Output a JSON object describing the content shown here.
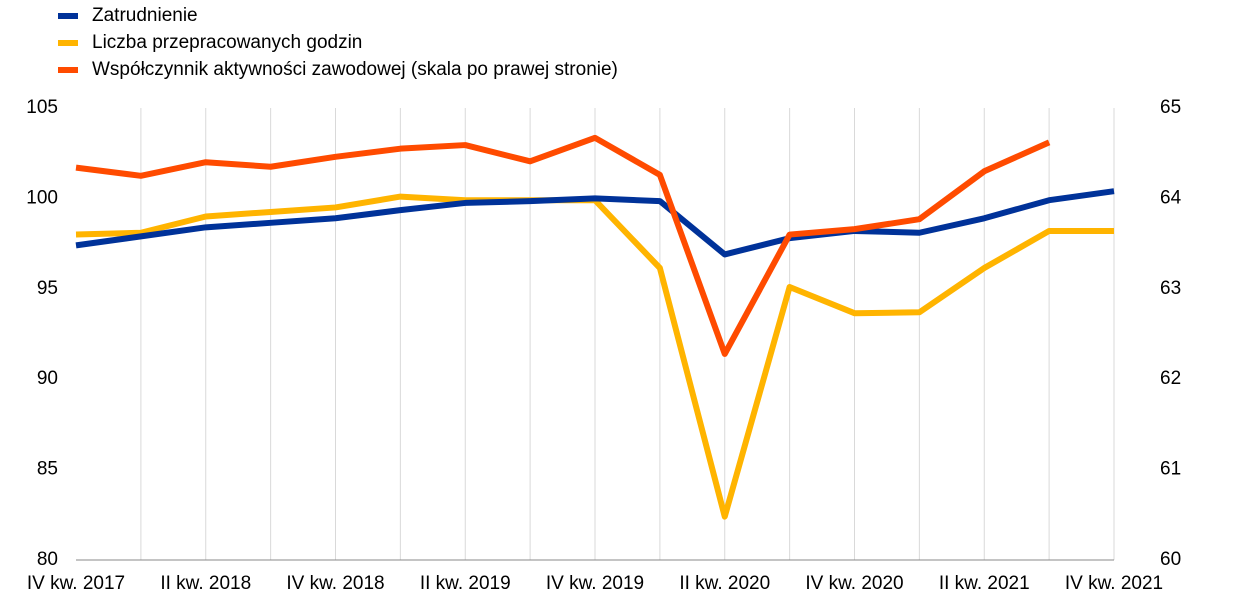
{
  "chart_data": {
    "type": "line",
    "categories": [
      "IV kw. 2017",
      null,
      "II kw. 2018",
      null,
      "IV kw. 2018",
      null,
      "II kw. 2019",
      null,
      "IV kw. 2019",
      null,
      "II kw. 2020",
      null,
      "IV kw. 2020",
      null,
      "II kw. 2021",
      null,
      "IV kw. 2021"
    ],
    "series": [
      {
        "name": "Zatrudnienie",
        "color": "#003299",
        "values": [
          97.4,
          97.9,
          98.4,
          98.65,
          98.9,
          99.35,
          99.75,
          99.85,
          100.0,
          99.85,
          96.9,
          97.8,
          98.2,
          98.1,
          98.9,
          99.9,
          100.4
        ]
      },
      {
        "name": "Liczba przepracowanych godzin",
        "color": "#FFB400",
        "values": [
          98.0,
          98.1,
          99.0,
          99.25,
          99.5,
          100.1,
          99.9,
          99.9,
          99.9,
          96.15,
          82.4,
          95.1,
          93.65,
          93.7,
          96.15,
          98.2,
          98.2
        ]
      },
      {
        "name": "Współczynnik aktywności zawodowej (skala po prawej stronie)",
        "color": "#FF4B00",
        "axis": "y2",
        "values": [
          64.34,
          64.25,
          64.4,
          64.35,
          64.46,
          64.55,
          64.59,
          64.41,
          64.67,
          64.26,
          62.28,
          63.6,
          63.66,
          63.77,
          64.3,
          64.62,
          null
        ]
      }
    ],
    "ylim": [
      80,
      105
    ],
    "yticks": [
      80,
      85,
      90,
      95,
      100,
      105
    ],
    "y2lim": [
      60,
      65
    ],
    "y2ticks": [
      60,
      61,
      62,
      63,
      64,
      65
    ],
    "grid": "x",
    "legend": "top-left"
  }
}
